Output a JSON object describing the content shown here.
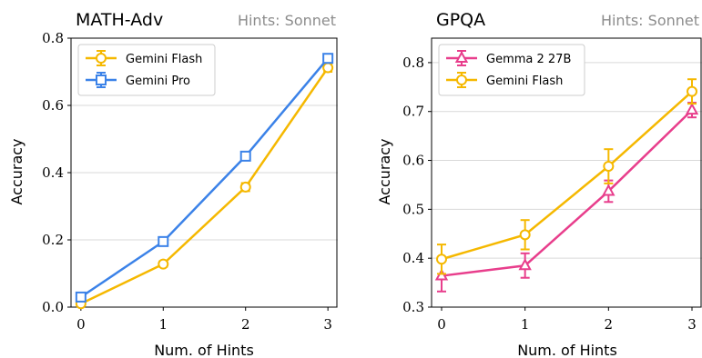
{
  "chart_data": [
    {
      "type": "line",
      "title": "MATH-Adv",
      "subtitle": "Hints: Sonnet",
      "xlabel": "Num. of Hints",
      "ylabel": "Accuracy",
      "x": [
        0,
        1,
        2,
        3
      ],
      "xticks": [
        "0",
        "1",
        "2",
        "3"
      ],
      "yticks": [
        "0.0",
        "0.2",
        "0.4",
        "0.6",
        "0.8"
      ],
      "xlim": [
        -0.12,
        3.12
      ],
      "ylim": [
        0.0,
        0.8
      ],
      "grid": "horizontal",
      "legend_position": "top-left",
      "series": [
        {
          "name": "Gemini Flash",
          "marker": "circle",
          "color": "#f5b800",
          "values": [
            0.01,
            0.128,
            0.357,
            0.712
          ],
          "err": [
            0.006,
            0.008,
            0.012,
            0.012
          ]
        },
        {
          "name": "Gemini Pro",
          "marker": "square",
          "color": "#3b82e8",
          "values": [
            0.03,
            0.195,
            0.449,
            0.74
          ],
          "err": [
            0.008,
            0.012,
            0.012,
            0.012
          ]
        }
      ]
    },
    {
      "type": "line",
      "title": "GPQA",
      "subtitle": "Hints: Sonnet",
      "xlabel": "Num. of Hints",
      "ylabel": "Accuracy",
      "x": [
        0,
        1,
        2,
        3
      ],
      "xticks": [
        "0",
        "1",
        "2",
        "3"
      ],
      "yticks": [
        "0.3",
        "0.4",
        "0.5",
        "0.6",
        "0.7",
        "0.8"
      ],
      "xlim": [
        -0.12,
        3.12
      ],
      "ylim": [
        0.3,
        0.85
      ],
      "grid": "horizontal",
      "legend_position": "top-left",
      "series": [
        {
          "name": "Gemma 2 27B",
          "marker": "triangle",
          "color": "#e83e8c",
          "values": [
            0.364,
            0.385,
            0.537,
            0.703
          ],
          "err": [
            0.032,
            0.025,
            0.022,
            0.015
          ]
        },
        {
          "name": "Gemini Flash",
          "marker": "circle",
          "color": "#f5b800",
          "values": [
            0.398,
            0.448,
            0.588,
            0.741
          ],
          "err": [
            0.03,
            0.03,
            0.035,
            0.025
          ]
        }
      ]
    }
  ]
}
